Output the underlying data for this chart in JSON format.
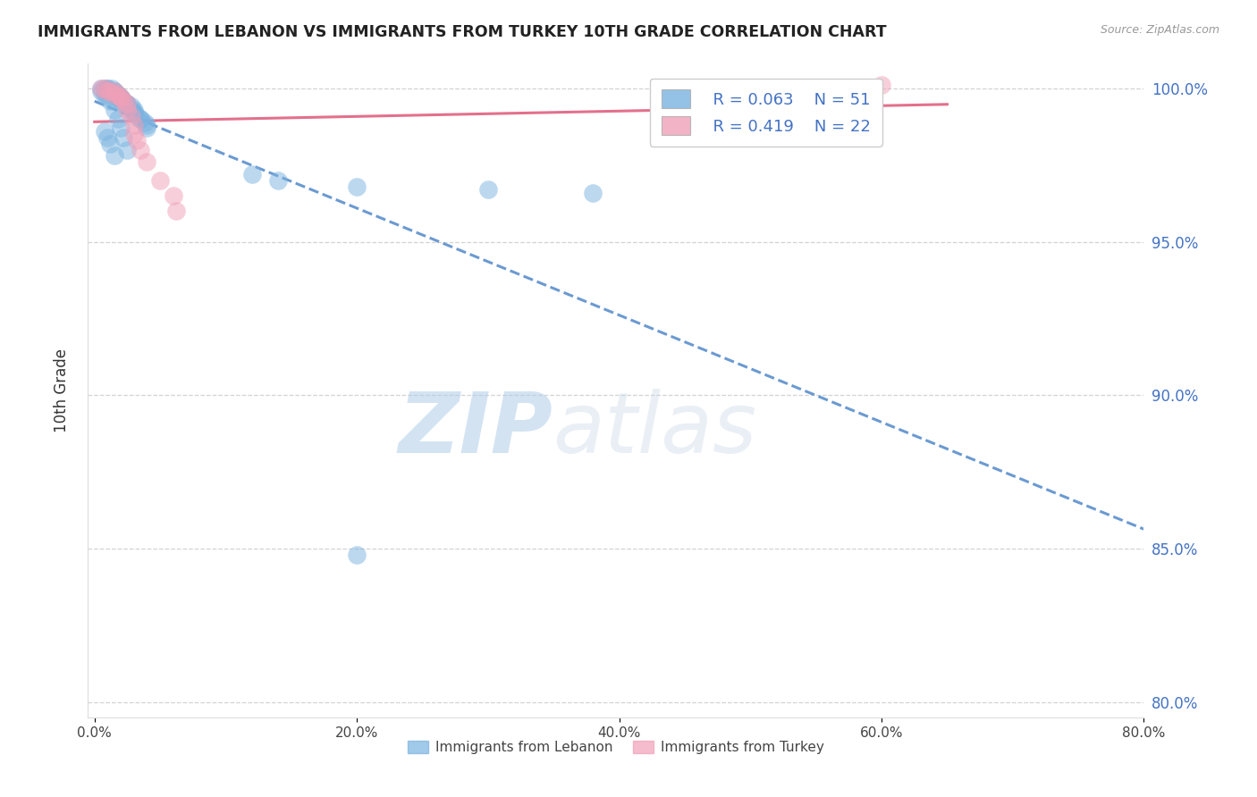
{
  "title": "IMMIGRANTS FROM LEBANON VS IMMIGRANTS FROM TURKEY 10TH GRADE CORRELATION CHART",
  "source_text": "Source: ZipAtlas.com",
  "ylabel": "10th Grade",
  "xlim": [
    -0.005,
    0.8
  ],
  "ylim": [
    0.795,
    1.008
  ],
  "xtick_labels": [
    "0.0%",
    "20.0%",
    "40.0%",
    "60.0%",
    "80.0%"
  ],
  "xtick_vals": [
    0.0,
    0.2,
    0.4,
    0.6,
    0.8
  ],
  "ytick_labels": [
    "80.0%",
    "85.0%",
    "90.0%",
    "95.0%",
    "100.0%"
  ],
  "ytick_vals": [
    0.8,
    0.85,
    0.9,
    0.95,
    1.0
  ],
  "legend_R1": "R = 0.063",
  "legend_N1": "N = 51",
  "legend_R2": "R = 0.419",
  "legend_N2": "N = 22",
  "blue_color": "#7ab3e0",
  "pink_color": "#f0a0b8",
  "line_blue": "#5b8fcc",
  "line_pink": "#e06080",
  "watermark_zip": "ZIP",
  "watermark_atlas": "atlas",
  "lebanon_x": [
    0.005,
    0.008,
    0.01,
    0.01,
    0.012,
    0.013,
    0.015,
    0.015,
    0.015,
    0.018,
    0.018,
    0.018,
    0.02,
    0.02,
    0.02,
    0.02,
    0.022,
    0.022,
    0.025,
    0.025,
    0.025,
    0.028,
    0.028,
    0.03,
    0.03,
    0.03,
    0.032,
    0.035,
    0.035,
    0.038,
    0.04,
    0.04,
    0.005,
    0.008,
    0.01,
    0.012,
    0.015,
    0.018,
    0.02,
    0.022,
    0.025,
    0.008,
    0.01,
    0.012,
    0.015,
    0.12,
    0.14,
    0.2,
    0.3,
    0.38,
    0.2
  ],
  "lebanon_y": [
    1.0,
    1.0,
    1.0,
    1.0,
    0.999,
    1.0,
    0.999,
    0.999,
    0.998,
    0.998,
    0.998,
    0.997,
    0.997,
    0.997,
    0.997,
    0.996,
    0.996,
    0.996,
    0.995,
    0.995,
    0.994,
    0.994,
    0.993,
    0.993,
    0.992,
    0.992,
    0.991,
    0.99,
    0.99,
    0.989,
    0.988,
    0.987,
    0.999,
    0.998,
    0.997,
    0.996,
    0.993,
    0.99,
    0.987,
    0.984,
    0.98,
    0.986,
    0.984,
    0.982,
    0.978,
    0.972,
    0.97,
    0.968,
    0.967,
    0.966,
    0.848
  ],
  "turkey_x": [
    0.005,
    0.008,
    0.01,
    0.012,
    0.015,
    0.015,
    0.018,
    0.02,
    0.02,
    0.022,
    0.025,
    0.025,
    0.028,
    0.03,
    0.03,
    0.032,
    0.035,
    0.04,
    0.05,
    0.06,
    0.062,
    0.6
  ],
  "turkey_y": [
    1.0,
    1.0,
    0.999,
    0.999,
    0.999,
    0.998,
    0.998,
    0.997,
    0.997,
    0.996,
    0.995,
    0.993,
    0.991,
    0.988,
    0.985,
    0.983,
    0.98,
    0.976,
    0.97,
    0.965,
    0.96,
    1.001
  ]
}
